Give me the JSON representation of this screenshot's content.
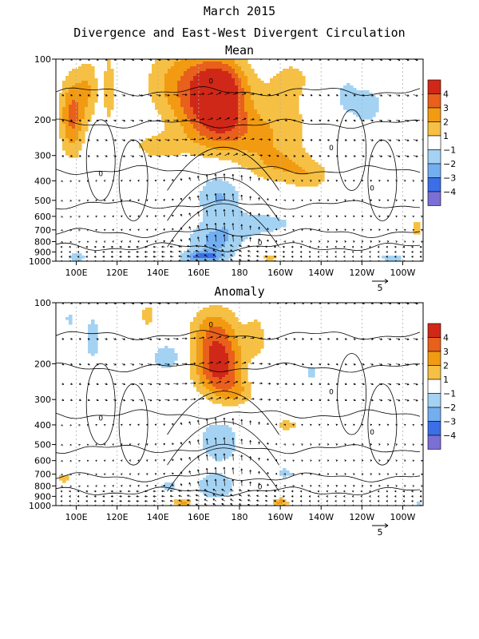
{
  "figure": {
    "title_line1": "March 2015",
    "title_line2": "Divergence and East-West Divergent Circulation"
  },
  "colors": {
    "pos": [
      "#f5c044",
      "#f29b12",
      "#e8601c",
      "#d02818"
    ],
    "neg": [
      "#a4d2f2",
      "#72aef0",
      "#3c6ee8",
      "#7b6fd6"
    ],
    "contour": "#000000",
    "grid": "#b0b0b0"
  },
  "chart_data": [
    {
      "type": "heatmap",
      "title": "Mean",
      "x_ticks": [
        "100E",
        "120E",
        "140E",
        "160E",
        "180",
        "160W",
        "140W",
        "120W",
        "100W"
      ],
      "x_range_deg_east": [
        90,
        270
      ],
      "x_tick_values_deg_east": [
        100,
        120,
        140,
        160,
        180,
        200,
        220,
        240,
        260
      ],
      "y_ticks": [
        "100",
        "200",
        "300",
        "400",
        "500",
        "600",
        "700",
        "800",
        "900",
        "1000"
      ],
      "y_range_hpa": [
        100,
        1000
      ],
      "y_scale": "log",
      "colorbar_levels": [
        "4",
        "3",
        "2",
        "1",
        "−1",
        "−2",
        "−3",
        "−4"
      ],
      "reference_vector_label": "5",
      "contour_labels": [
        "0",
        "0",
        "0",
        "0",
        "0"
      ],
      "blobs": [
        {
          "lon": 170,
          "p": 135,
          "rl": 14,
          "rp": 0.35,
          "v": 4.6
        },
        {
          "lon": 168,
          "p": 200,
          "rl": 16,
          "rp": 0.35,
          "v": 3.2
        },
        {
          "lon": 190,
          "p": 240,
          "rl": 22,
          "rp": 0.32,
          "v": 1.9
        },
        {
          "lon": 150,
          "p": 130,
          "rl": 16,
          "rp": 0.45,
          "v": 2.2
        },
        {
          "lon": 205,
          "p": 140,
          "rl": 12,
          "rp": 0.35,
          "v": 1.6
        },
        {
          "lon": 98,
          "p": 190,
          "rl": 6,
          "rp": 0.45,
          "v": 3.3
        },
        {
          "lon": 106,
          "p": 140,
          "rl": 5,
          "rp": 0.35,
          "v": 1.8
        },
        {
          "lon": 116,
          "p": 140,
          "rl": 3,
          "rp": 0.5,
          "v": 1.5
        },
        {
          "lon": 140,
          "p": 270,
          "rl": 14,
          "rp": 0.15,
          "v": 1.4
        },
        {
          "lon": 200,
          "p": 340,
          "rl": 16,
          "rp": 0.2,
          "v": 1.6
        },
        {
          "lon": 215,
          "p": 380,
          "rl": 10,
          "rp": 0.16,
          "v": 1.3
        },
        {
          "lon": 170,
          "p": 480,
          "rl": 11,
          "rp": 0.26,
          "v": -2.1
        },
        {
          "lon": 168,
          "p": 800,
          "rl": 14,
          "rp": 0.2,
          "v": -2.2
        },
        {
          "lon": 190,
          "p": 650,
          "rl": 20,
          "rp": 0.14,
          "v": -1.5
        },
        {
          "lon": 162,
          "p": 950,
          "rl": 10,
          "rp": 0.06,
          "v": -2.8
        },
        {
          "lon": 215,
          "p": 160,
          "rl": 5,
          "rp": 0.14,
          "v": -1.5
        },
        {
          "lon": 242,
          "p": 170,
          "rl": 9,
          "rp": 0.24,
          "v": -1.6
        },
        {
          "lon": 232,
          "p": 150,
          "rl": 5,
          "rp": 0.18,
          "v": -1.3
        },
        {
          "lon": 267,
          "p": 680,
          "rl": 3,
          "rp": 0.12,
          "v": 1.5
        },
        {
          "lon": 100,
          "p": 950,
          "rl": 6,
          "rp": 0.06,
          "v": -1.4
        },
        {
          "lon": 255,
          "p": 960,
          "rl": 10,
          "rp": 0.05,
          "v": -1.3
        },
        {
          "lon": 195,
          "p": 960,
          "rl": 8,
          "rp": 0.05,
          "v": 1.2
        }
      ]
    },
    {
      "type": "heatmap",
      "title": "Anomaly",
      "x_ticks": [
        "100E",
        "120E",
        "140E",
        "160E",
        "180",
        "160W",
        "140W",
        "120W",
        "100W"
      ],
      "x_range_deg_east": [
        90,
        270
      ],
      "x_tick_values_deg_east": [
        100,
        120,
        140,
        160,
        180,
        200,
        220,
        240,
        260
      ],
      "y_ticks": [
        "100",
        "200",
        "300",
        "400",
        "500",
        "600",
        "700",
        "800",
        "900",
        "1000"
      ],
      "y_range_hpa": [
        100,
        1000
      ],
      "y_scale": "log",
      "colorbar_levels": [
        "4",
        "3",
        "2",
        "1",
        "−1",
        "−2",
        "−3",
        "−4"
      ],
      "reference_vector_label": "5",
      "contour_labels": [
        "0",
        "0",
        "0",
        "0",
        "0"
      ],
      "blobs": [
        {
          "lon": 170,
          "p": 210,
          "rl": 12,
          "rp": 0.3,
          "v": 4.3
        },
        {
          "lon": 168,
          "p": 140,
          "rl": 12,
          "rp": 0.3,
          "v": 2.8
        },
        {
          "lon": 178,
          "p": 280,
          "rl": 10,
          "rp": 0.15,
          "v": 1.4
        },
        {
          "lon": 188,
          "p": 150,
          "rl": 5,
          "rp": 0.25,
          "v": 1.6
        },
        {
          "lon": 135,
          "p": 115,
          "rl": 4,
          "rp": 0.15,
          "v": 1.5
        },
        {
          "lon": 170,
          "p": 480,
          "rl": 10,
          "rp": 0.24,
          "v": -2.0
        },
        {
          "lon": 168,
          "p": 800,
          "rl": 12,
          "rp": 0.18,
          "v": -1.6
        },
        {
          "lon": 108,
          "p": 150,
          "rl": 5,
          "rp": 0.35,
          "v": -1.4
        },
        {
          "lon": 97,
          "p": 120,
          "rl": 3,
          "rp": 0.1,
          "v": -1.3
        },
        {
          "lon": 145,
          "p": 185,
          "rl": 10,
          "rp": 0.2,
          "v": -1.5
        },
        {
          "lon": 190,
          "p": 210,
          "rl": 5,
          "rp": 0.15,
          "v": -1.3
        },
        {
          "lon": 215,
          "p": 220,
          "rl": 4,
          "rp": 0.1,
          "v": -1.3
        },
        {
          "lon": 203,
          "p": 400,
          "rl": 6,
          "rp": 0.07,
          "v": 1.5
        },
        {
          "lon": 202,
          "p": 690,
          "rl": 5,
          "rp": 0.07,
          "v": -1.5
        },
        {
          "lon": 152,
          "p": 960,
          "rl": 5,
          "rp": 0.05,
          "v": 2.4
        },
        {
          "lon": 200,
          "p": 960,
          "rl": 4,
          "rp": 0.05,
          "v": 2.4
        },
        {
          "lon": 94,
          "p": 730,
          "rl": 3,
          "rp": 0.06,
          "v": 1.6
        },
        {
          "lon": 145,
          "p": 800,
          "rl": 5,
          "rp": 0.07,
          "v": -1.4
        },
        {
          "lon": 268,
          "p": 980,
          "rl": 2,
          "rp": 0.04,
          "v": -1.3
        }
      ]
    }
  ]
}
